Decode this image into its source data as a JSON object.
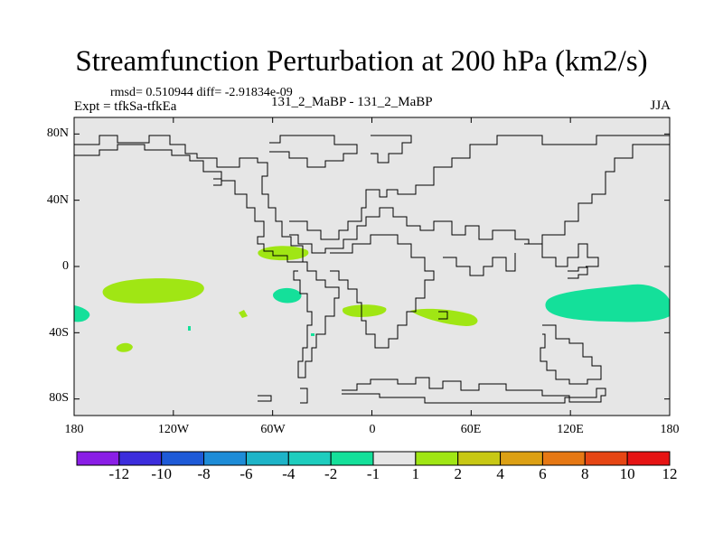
{
  "title": "Streamfunction Perturbation at 200 hPa (km2/s)",
  "stats": "rmsd= 0.510944 diff= -2.91834e-09",
  "experiment": "Expt = tfkSa-tfkEa",
  "center_label": "131_2_MaBP - 131_2_MaBP",
  "season": "JJA",
  "map": {
    "background_color": "#e6e6e6",
    "lat_ticks": [
      "80N",
      "40N",
      "0",
      "40S",
      "80S"
    ],
    "lon_ticks": [
      "180",
      "120W",
      "60W",
      "0",
      "60E",
      "120E",
      "180"
    ],
    "lat_values": [
      80,
      40,
      0,
      -40,
      -80
    ],
    "lon_values": [
      -180,
      -120,
      -60,
      0,
      60,
      120,
      180
    ],
    "lat_range": [
      -90,
      90
    ],
    "lon_range": [
      -180,
      180
    ]
  },
  "colorbar": {
    "labels": [
      "-12",
      "-10",
      "-8",
      "-6",
      "-4",
      "-2",
      "-1",
      "1",
      "2",
      "4",
      "6",
      "8",
      "10",
      "12"
    ],
    "colors": [
      "#8a1ee6",
      "#3c2ddc",
      "#1e5ad7",
      "#1e8cd7",
      "#1eb4c8",
      "#1ecdbe",
      "#14e09a",
      "#e6e6e6",
      "#a0e614",
      "#c8c814",
      "#dca014",
      "#e67814",
      "#e64614",
      "#e61414"
    ]
  },
  "anomaly_color_green": "#14e09a",
  "anomaly_color_lime": "#a0e614"
}
